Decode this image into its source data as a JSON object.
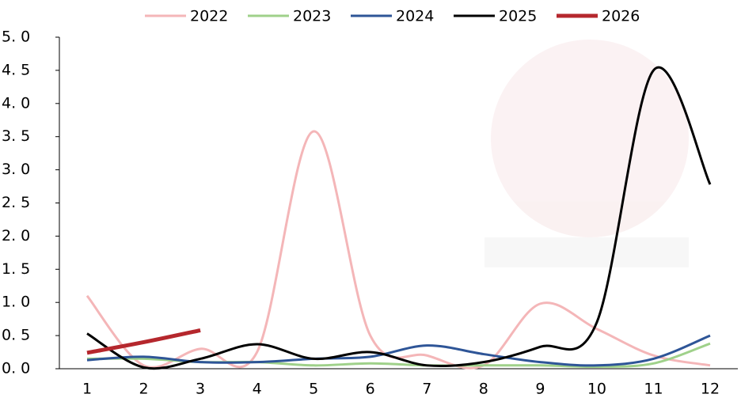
{
  "chart_data": {
    "type": "line",
    "categories": [
      "1",
      "2",
      "3",
      "4",
      "5",
      "6",
      "7",
      "8",
      "9",
      "10",
      "11",
      "12"
    ],
    "series": [
      {
        "name": "2022",
        "color": "#f4b6b8",
        "values": [
          1.1,
          0.05,
          0.3,
          0.25,
          3.58,
          0.5,
          0.2,
          0.05,
          0.98,
          0.6,
          0.2,
          0.05
        ]
      },
      {
        "name": "2023",
        "color": "#9fd18a",
        "values": [
          0.15,
          0.15,
          0.1,
          0.1,
          0.05,
          0.08,
          0.05,
          0.05,
          0.05,
          0.03,
          0.08,
          0.38
        ]
      },
      {
        "name": "2024",
        "color": "#2e5597",
        "values": [
          0.13,
          0.18,
          0.1,
          0.1,
          0.15,
          0.18,
          0.35,
          0.22,
          0.1,
          0.05,
          0.15,
          0.5
        ]
      },
      {
        "name": "2025",
        "color": "#000000",
        "values": [
          0.53,
          0.02,
          0.15,
          0.37,
          0.15,
          0.25,
          0.05,
          0.1,
          0.33,
          0.7,
          4.5,
          2.78
        ]
      },
      {
        "name": "2026",
        "color": "#b5272d",
        "values": [
          0.24,
          0.4,
          0.58,
          null,
          null,
          null,
          null,
          null,
          null,
          null,
          null,
          null
        ]
      }
    ],
    "ylim": [
      0,
      5
    ],
    "yticks": [
      {
        "value": 0,
        "label": "0. 0"
      },
      {
        "value": 0.5,
        "label": "0. 5"
      },
      {
        "value": 1,
        "label": "1. 0"
      },
      {
        "value": 1.5,
        "label": "1. 5"
      },
      {
        "value": 2,
        "label": "2. 0"
      },
      {
        "value": 2.5,
        "label": "2. 5"
      },
      {
        "value": 3,
        "label": "3. 0"
      },
      {
        "value": 3.5,
        "label": "3. 5"
      },
      {
        "value": 4,
        "label": "4. 0"
      },
      {
        "value": 4.5,
        "label": "4. 5"
      },
      {
        "value": 5,
        "label": "5. 0"
      }
    ],
    "legend": "top"
  }
}
